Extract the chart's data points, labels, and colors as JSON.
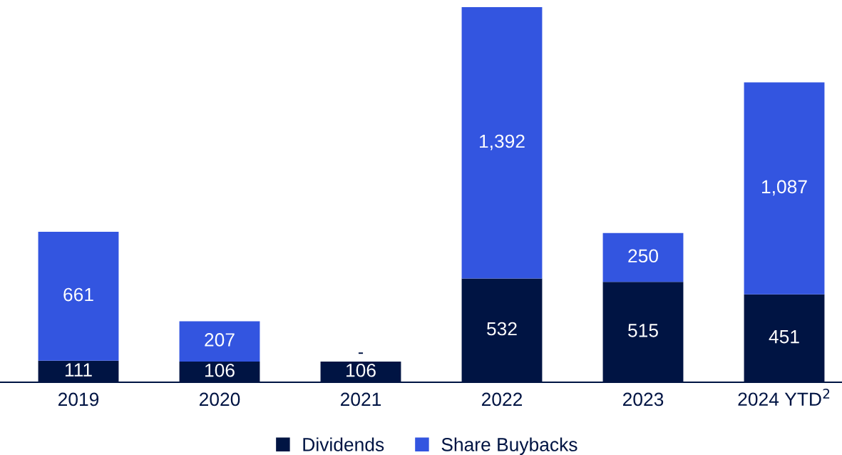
{
  "chart_data": {
    "type": "bar",
    "stacked": true,
    "categories": [
      "2019",
      "2020",
      "2021",
      "2022",
      "2023",
      "2024 YTD$^{2}$"
    ],
    "series": [
      {
        "name": "Dividends",
        "color": "#001443",
        "values": [
          111,
          106,
          106,
          532,
          515,
          451
        ],
        "value_labels": [
          "111",
          "106",
          "106",
          "532",
          "515",
          "451"
        ]
      },
      {
        "name": "Share Buybacks",
        "color": "#3355e0",
        "values": [
          661,
          207,
          0,
          1392,
          250,
          1087
        ],
        "value_labels": [
          "661",
          "207",
          "-",
          "1,392",
          "250",
          "1,087"
        ]
      }
    ],
    "legend": "bottom"
  }
}
